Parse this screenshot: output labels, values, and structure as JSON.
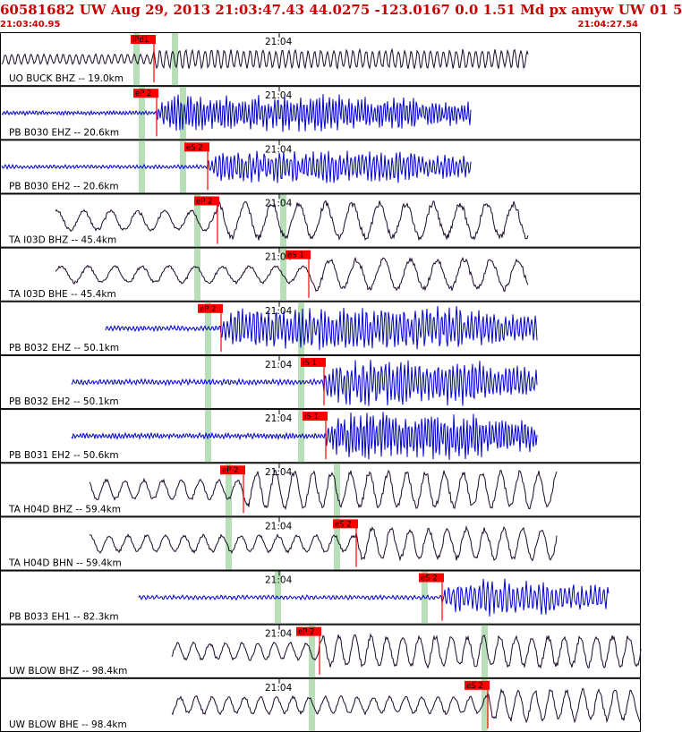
{
  "header": {
    "title": "60581682 UW Aug 29, 2013 21:03:47.43    44.0275 -123.0167  0.0 1.51 Md px amyw UW 01    5",
    "start_time": "21:03:40.95",
    "end_time": "21:04:27.54"
  },
  "colors": {
    "black_trace": "#1a0a2a",
    "blue_trace": "#0000cc",
    "pick": "#ff0000",
    "green_band": "#b8e0b8",
    "border": "#000000"
  },
  "panels": [
    {
      "label": "UO BUCK BHZ -- 19.0km",
      "tick_label": "21:04",
      "trace_color": "black",
      "pick": "iPd1",
      "amplitude": 0.35,
      "period": 0.12,
      "wave_start": 0.33
    },
    {
      "label": "PB B030 EHZ -- 20.6km",
      "tick_label": "21:04",
      "trace_color": "blue",
      "pick": "eP 2",
      "amplitude": 0.55,
      "period": 0.06,
      "wave_start": 0.25
    },
    {
      "label": "PB B030 EH2 -- 20.6km",
      "tick_label": "21:04",
      "trace_color": "blue",
      "pick": "eS 2",
      "amplitude": 0.5,
      "period": 0.07,
      "wave_start": 0.33
    },
    {
      "label": "TA I03D BHZ -- 45.4km",
      "tick_label": "21:04",
      "trace_color": "black",
      "pick": "eP 2",
      "amplitude": 0.7,
      "period": 0.5,
      "wave_start": 0.0
    },
    {
      "label": "TA I03D BHE -- 45.4km",
      "tick_label": "21:04",
      "trace_color": "black",
      "pick": "eS 1",
      "amplitude": 0.6,
      "period": 0.5,
      "wave_start": 0.0
    },
    {
      "label": "PB B032 EHZ -- 50.1km",
      "tick_label": "21:04",
      "trace_color": "blue",
      "pick": "eP 2",
      "amplitude": 0.65,
      "period": 0.07,
      "wave_start": 0.55
    },
    {
      "label": "PB B032 EH2 -- 50.1km",
      "tick_label": "21:04",
      "trace_color": "blue",
      "pick": "iS 1",
      "amplitude": 0.7,
      "period": 0.07,
      "wave_start": 0.52
    },
    {
      "label": "PB B031 EH2 -- 50.6km",
      "tick_label": "21:04",
      "trace_color": "blue",
      "pick": "iS 1",
      "amplitude": 0.7,
      "period": 0.06,
      "wave_start": 0.52
    },
    {
      "label": "TA H04D BHZ -- 59.4km",
      "tick_label": "21:04",
      "trace_color": "black",
      "pick": "eP 2",
      "amplitude": 0.7,
      "period": 0.35,
      "wave_start": 0.0
    },
    {
      "label": "TA H04D BHN -- 59.4km",
      "tick_label": "21:04",
      "trace_color": "black",
      "pick": "eS 2",
      "amplitude": 0.6,
      "period": 0.35,
      "wave_start": 0.0
    },
    {
      "label": "PB B033 EH1 -- 82.3km",
      "tick_label": "21:04",
      "trace_color": "blue",
      "pick": "eS 2",
      "amplitude": 0.55,
      "period": 0.08,
      "wave_start": 0.6
    },
    {
      "label": "UW BLOW BHZ -- 98.4km",
      "tick_label": "21:04",
      "trace_color": "black",
      "pick": "eP 2",
      "amplitude": 0.6,
      "period": 0.3,
      "wave_start": 0.0
    },
    {
      "label": "UW BLOW BHE -- 98.4km",
      "tick_label": "21:04",
      "trace_color": "black",
      "pick": "eS 2",
      "amplitude": 0.6,
      "period": 0.3,
      "wave_start": 0.0
    }
  ]
}
